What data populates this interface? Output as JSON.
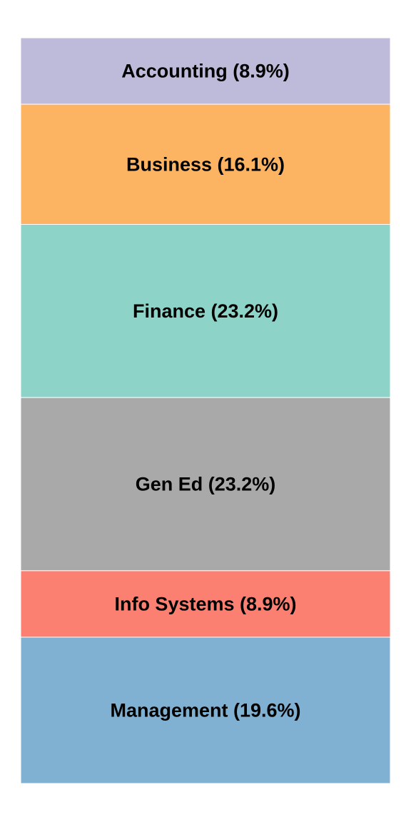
{
  "chart_data": {
    "type": "bar",
    "orientation": "stacked-vertical",
    "categories": [
      "Accounting",
      "Business",
      "Finance",
      "Gen Ed",
      "Info Systems",
      "Management"
    ],
    "values": [
      8.9,
      16.1,
      23.2,
      23.2,
      8.9,
      19.6
    ],
    "unit": "%",
    "labels": [
      "Accounting (8.9%)",
      "Business (16.1%)",
      "Finance (23.2%)",
      "Gen Ed (23.2%)",
      "Info Systems (8.9%)",
      "Management (19.6%)"
    ],
    "colors": [
      "#bebada",
      "#fdb462",
      "#8dd3c7",
      "#a9a9a9",
      "#fb8072",
      "#80b1d3"
    ],
    "legend": "none",
    "grid": false
  }
}
